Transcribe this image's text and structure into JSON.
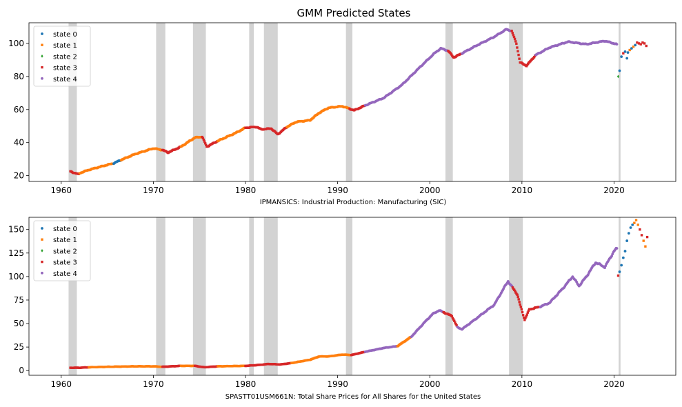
{
  "figure_title": "GMM Predicted States",
  "colors": {
    "state_0": "#1f77b4",
    "state_1": "#ff7f0e",
    "state_2": "#2ca02c",
    "state_3": "#d62728",
    "state_4": "#9467bd",
    "recession_shading": "#d3d3d3"
  },
  "chart_data": [
    {
      "type": "scatter",
      "title": "GMM Predicted States",
      "xlabel": "IPMANSICS: Industrial Production: Manufacturing (SIC)",
      "ylabel": "",
      "xlim": [
        1956.5,
        2026.7
      ],
      "ylim": [
        16.5,
        112.5
      ],
      "xticks": [
        1960,
        1970,
        1980,
        1990,
        2000,
        2010,
        2020
      ],
      "yticks": [
        20,
        40,
        60,
        80,
        100
      ],
      "legend_position": "upper-left",
      "legend": [
        "state 0",
        "state 1",
        "state 2",
        "state 3",
        "state 4"
      ],
      "recession_bands": [
        [
          1960.8,
          1961.7
        ],
        [
          1970.3,
          1971.3
        ],
        [
          1974.3,
          1975.7
        ],
        [
          1980.4,
          1980.9
        ],
        [
          1982.0,
          1983.5
        ],
        [
          1990.9,
          1991.6
        ],
        [
          2001.7,
          2002.5
        ],
        [
          2008.6,
          2010.1
        ],
        [
          2020.5,
          2020.7
        ]
      ],
      "series_path": [
        [
          1961.0,
          22.5,
          3
        ],
        [
          1961.9,
          20.8,
          3
        ],
        [
          1962.0,
          21.5,
          1
        ],
        [
          1963.0,
          23.5,
          1
        ],
        [
          1965.0,
          26.5,
          1
        ],
        [
          1965.7,
          27.5,
          0
        ],
        [
          1966.5,
          29.5,
          1
        ],
        [
          1968.0,
          33.0,
          1
        ],
        [
          1970.0,
          36.5,
          1
        ],
        [
          1971.0,
          35.5,
          3
        ],
        [
          1971.6,
          34.0,
          3
        ],
        [
          1973.0,
          37.5,
          1
        ],
        [
          1974.5,
          43.0,
          1
        ],
        [
          1975.3,
          43.5,
          3
        ],
        [
          1975.8,
          37.5,
          3
        ],
        [
          1977.0,
          41.0,
          1
        ],
        [
          1979.0,
          46.0,
          1
        ],
        [
          1980.0,
          49.0,
          3
        ],
        [
          1981.2,
          49.5,
          3
        ],
        [
          1981.7,
          48.0,
          3
        ],
        [
          1982.8,
          48.5,
          3
        ],
        [
          1983.5,
          45.0,
          3
        ],
        [
          1984.5,
          49.5,
          1
        ],
        [
          1985.5,
          52.5,
          1
        ],
        [
          1987.0,
          53.5,
          1
        ],
        [
          1988.0,
          58.0,
          1
        ],
        [
          1989.0,
          61.0,
          1
        ],
        [
          1990.5,
          62.0,
          1
        ],
        [
          1991.3,
          60.5,
          3
        ],
        [
          1991.8,
          59.5,
          3
        ],
        [
          1993.0,
          62.5,
          4
        ],
        [
          1995.0,
          67.0,
          4
        ],
        [
          1997.0,
          75.0,
          4
        ],
        [
          1999.0,
          86.0,
          4
        ],
        [
          2000.5,
          94.0,
          4
        ],
        [
          2001.2,
          97.0,
          4
        ],
        [
          2002.0,
          95.5,
          3
        ],
        [
          2002.6,
          91.5,
          3
        ],
        [
          2003.5,
          94.0,
          4
        ],
        [
          2005.0,
          98.5,
          4
        ],
        [
          2007.0,
          104.0,
          4
        ],
        [
          2008.3,
          108.5,
          4
        ],
        [
          2008.9,
          107.5,
          3
        ],
        [
          2009.4,
          100.0,
          3
        ],
        [
          2009.8,
          88.5,
          3
        ],
        [
          2010.5,
          86.5,
          3
        ],
        [
          2011.5,
          93.0,
          4
        ],
        [
          2013.0,
          97.5,
          4
        ],
        [
          2015.0,
          101.0,
          4
        ],
        [
          2017.0,
          99.5,
          4
        ],
        [
          2019.0,
          101.5,
          4
        ],
        [
          2020.3,
          99.5,
          4
        ]
      ],
      "post_covid_points": [
        [
          2020.45,
          80.0,
          2
        ],
        [
          2020.6,
          83.5,
          0
        ],
        [
          2020.8,
          92.0,
          0
        ],
        [
          2021.0,
          94.0,
          3
        ],
        [
          2021.2,
          95.0,
          0
        ],
        [
          2021.4,
          91.0,
          0
        ],
        [
          2021.5,
          94.5,
          0
        ],
        [
          2021.7,
          96.0,
          1
        ],
        [
          2021.9,
          97.0,
          0
        ],
        [
          2022.1,
          98.0,
          1
        ],
        [
          2022.3,
          99.0,
          0
        ],
        [
          2022.5,
          100.5,
          3
        ],
        [
          2022.7,
          100.0,
          3
        ],
        [
          2022.9,
          99.5,
          3
        ],
        [
          2023.1,
          100.5,
          3
        ],
        [
          2023.3,
          100.0,
          3
        ],
        [
          2023.5,
          98.5,
          3
        ]
      ]
    },
    {
      "type": "scatter",
      "title": "",
      "xlabel": "SPASTT01USM661N: Total Share Prices for All Shares for the United States",
      "ylabel": "",
      "xlim": [
        1956.5,
        2026.7
      ],
      "ylim": [
        -5,
        163
      ],
      "xticks": [
        1960,
        1970,
        1980,
        1990,
        2000,
        2010,
        2020
      ],
      "yticks": [
        0,
        25,
        50,
        75,
        100,
        125,
        150
      ],
      "legend_position": "upper-left",
      "legend": [
        "state 0",
        "state 1",
        "state 2",
        "state 3",
        "state 4"
      ],
      "recession_bands": [
        [
          1960.8,
          1961.7
        ],
        [
          1970.3,
          1971.3
        ],
        [
          1974.3,
          1975.7
        ],
        [
          1980.4,
          1980.9
        ],
        [
          1982.0,
          1983.5
        ],
        [
          1990.9,
          1991.6
        ],
        [
          2001.7,
          2002.5
        ],
        [
          2008.6,
          2010.1
        ],
        [
          2020.5,
          2020.7
        ]
      ],
      "series_path": [
        [
          1961.0,
          3.0,
          3
        ],
        [
          1962.0,
          3.0,
          3
        ],
        [
          1963.0,
          3.5,
          1
        ],
        [
          1965.0,
          4.0,
          1
        ],
        [
          1968.0,
          4.5,
          1
        ],
        [
          1970.0,
          4.5,
          1
        ],
        [
          1971.0,
          4.0,
          3
        ],
        [
          1973.0,
          5.0,
          1
        ],
        [
          1974.5,
          5.0,
          3
        ],
        [
          1975.5,
          3.5,
          3
        ],
        [
          1977.0,
          4.5,
          1
        ],
        [
          1980.0,
          5.0,
          3
        ],
        [
          1981.5,
          6.0,
          3
        ],
        [
          1982.5,
          7.0,
          3
        ],
        [
          1983.8,
          6.5,
          3
        ],
        [
          1985.0,
          8.0,
          1
        ],
        [
          1987.0,
          11.5,
          1
        ],
        [
          1988.0,
          15.0,
          1
        ],
        [
          1989.0,
          15.0,
          1
        ],
        [
          1990.5,
          17.0,
          1
        ],
        [
          1991.5,
          16.5,
          3
        ],
        [
          1993.0,
          20.0,
          4
        ],
        [
          1995.0,
          24.0,
          4
        ],
        [
          1996.5,
          26.0,
          1
        ],
        [
          1998.0,
          36.0,
          4
        ],
        [
          1999.5,
          52.0,
          4
        ],
        [
          2000.3,
          60.0,
          4
        ],
        [
          2001.0,
          64.0,
          4
        ],
        [
          2001.5,
          62.0,
          3
        ],
        [
          2002.4,
          58.0,
          3
        ],
        [
          2003.0,
          46.0,
          4
        ],
        [
          2003.5,
          44.0,
          4
        ],
        [
          2005.0,
          55.0,
          4
        ],
        [
          2007.0,
          70.0,
          4
        ],
        [
          2008.0,
          87.0,
          4
        ],
        [
          2008.5,
          95.0,
          4
        ],
        [
          2009.0,
          88.0,
          3
        ],
        [
          2009.5,
          81.0,
          3
        ],
        [
          2009.8,
          70.0,
          3
        ],
        [
          2010.3,
          54.0,
          3
        ],
        [
          2010.8,
          65.0,
          3
        ],
        [
          2012.0,
          68.0,
          4
        ],
        [
          2013.0,
          72.0,
          4
        ],
        [
          2014.5,
          88.0,
          4
        ],
        [
          2015.5,
          100.0,
          4
        ],
        [
          2016.2,
          90.0,
          4
        ],
        [
          2017.0,
          100.0,
          4
        ],
        [
          2018.0,
          115.0,
          4
        ],
        [
          2019.0,
          110.0,
          4
        ],
        [
          2020.0,
          127.0,
          4
        ],
        [
          2020.3,
          130.0,
          4
        ]
      ],
      "post_covid_points": [
        [
          2020.45,
          101.0,
          3
        ],
        [
          2020.6,
          105.0,
          0
        ],
        [
          2020.8,
          112.0,
          0
        ],
        [
          2021.0,
          120.0,
          0
        ],
        [
          2021.2,
          127.0,
          0
        ],
        [
          2021.4,
          138.0,
          0
        ],
        [
          2021.6,
          146.0,
          0
        ],
        [
          2021.8,
          152.0,
          0
        ],
        [
          2022.0,
          155.0,
          0
        ],
        [
          2022.2,
          157.0,
          1
        ],
        [
          2022.4,
          160.0,
          1
        ],
        [
          2022.6,
          155.0,
          1
        ],
        [
          2022.8,
          150.0,
          3
        ],
        [
          2023.0,
          144.0,
          3
        ],
        [
          2023.2,
          138.0,
          1
        ],
        [
          2023.4,
          132.0,
          1
        ],
        [
          2023.6,
          142.0,
          3
        ]
      ]
    }
  ]
}
